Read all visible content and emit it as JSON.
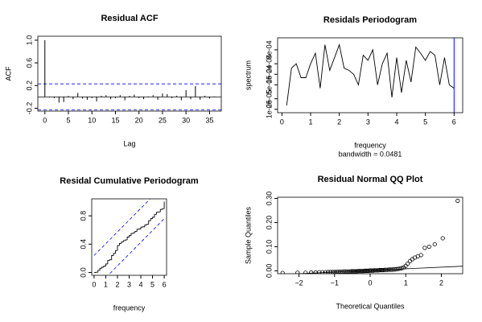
{
  "chart_data": [
    {
      "type": "stem",
      "title": "Residual ACF",
      "x_label": "Lag",
      "y_label": "ACF",
      "color": "#000000",
      "ci_color": "#0000ff",
      "x": [
        0,
        1,
        2,
        3,
        4,
        5,
        6,
        7,
        8,
        9,
        10,
        11,
        12,
        13,
        14,
        15,
        16,
        17,
        18,
        19,
        20,
        21,
        22,
        23,
        24,
        25,
        26,
        27,
        28,
        29,
        30,
        31,
        32,
        33,
        34,
        35,
        36
      ],
      "values": [
        1,
        -0.01,
        -0.02,
        -0.1,
        -0.09,
        0.02,
        -0.04,
        0.07,
        -0.03,
        -0.05,
        -0.02,
        -0.08,
        0.02,
        0.03,
        -0.04,
        -0.02,
        0.03,
        -0.06,
        0.02,
        0.04,
        -0.02,
        -0.04,
        0.01,
        0.03,
        -0.05,
        0.06,
        0.05,
        -0.02,
        0.02,
        -0.06,
        0.12,
        -0.04,
        0.19,
        -0.05,
        0.02,
        -0.03,
        0.01
      ],
      "ci_lines": [
        0.23,
        -0.23
      ],
      "xlim": [
        -1.5,
        37.5
      ],
      "ylim": [
        -0.25,
        1.07
      ],
      "xticks": [
        0,
        5,
        10,
        15,
        20,
        25,
        30,
        35
      ],
      "yticks": [
        {
          "value": -0.2,
          "label": "-0.2"
        },
        0.2,
        0.6,
        {
          "value": 1,
          "label": "1.0"
        }
      ]
    },
    {
      "type": "line",
      "title": "Residals Periodogram",
      "subtitle": "bandwidth = 0.0481",
      "x_label": "frequency",
      "y_label": "spectrum",
      "color": "#000000",
      "ci_color": "#0000ff",
      "log_y": true,
      "x": [
        0.1667,
        0.3333,
        0.5,
        0.6667,
        0.8333,
        1,
        1.1667,
        1.3333,
        1.5,
        1.6667,
        1.8333,
        2,
        2.1667,
        2.3333,
        2.5,
        2.6667,
        2.8333,
        3,
        3.1667,
        3.3333,
        3.5,
        3.6667,
        3.8333,
        4,
        4.1667,
        4.3333,
        4.5,
        4.6667,
        4.8333,
        5,
        5.1667,
        5.3333,
        5.5,
        5.6667,
        5.8333,
        6
      ],
      "values": [
        1.3e-05,
        0.00015,
        0.0002,
        8e-05,
        8e-05,
        0.0002,
        0.0004,
        4e-05,
        0.0007,
        0.00013,
        0.0003,
        0.0007,
        0.00015,
        0.00013,
        0.0001,
        5e-05,
        0.00035,
        0.00025,
        0.0005,
        5e-05,
        0.0002,
        0.0004,
        2.2e-05,
        0.0003,
        3e-05,
        0.00025,
        6e-05,
        0.0006,
        0.0004,
        0.00025,
        0.00045,
        0.00035,
        5e-05,
        0.0003,
        5e-05,
        4e-05
      ],
      "xlim": [
        -0.15,
        6.3
      ],
      "ylim": [
        8e-06,
        0.0011
      ],
      "xticks": [
        0,
        1,
        2,
        3,
        4,
        5,
        6
      ],
      "yticks": [
        {
          "value": 1e-05,
          "label": "1e-05"
        },
        {
          "value": 2e-05,
          "label": "2e-05"
        },
        {
          "value": 5e-05,
          "label": "5e-05"
        },
        {
          "value": 0.0001,
          "label": "1e-04"
        },
        {
          "value": 0.0002,
          "label": "2e-04"
        },
        {
          "value": 0.0005,
          "label": "5e-04"
        }
      ]
    },
    {
      "type": "step",
      "title": "Residal Cumulative Periodogram",
      "x_label": "frequency",
      "color": "#000000",
      "ci_color": "#0000ff",
      "x": [
        0,
        0.1667,
        0.3333,
        0.5,
        0.6667,
        0.8333,
        1,
        1.1667,
        1.3333,
        1.5,
        1.6667,
        1.8333,
        2,
        2.1667,
        2.3333,
        2.5,
        2.6667,
        2.8333,
        3,
        3.1667,
        3.3333,
        3.5,
        3.6667,
        3.8333,
        4,
        4.1667,
        4.3333,
        4.5,
        4.6667,
        4.8333,
        5,
        5.1667,
        5.3333,
        5.5,
        5.6667,
        5.8333,
        6
      ],
      "values": [
        0,
        0.003,
        0.03,
        0.06,
        0.075,
        0.09,
        0.12,
        0.17,
        0.18,
        0.24,
        0.27,
        0.31,
        0.38,
        0.41,
        0.43,
        0.45,
        0.46,
        0.5,
        0.52,
        0.55,
        0.56,
        0.58,
        0.61,
        0.615,
        0.64,
        0.645,
        0.67,
        0.68,
        0.73,
        0.76,
        0.78,
        0.82,
        0.85,
        0.855,
        0.89,
        0.9,
        1
      ],
      "bands": {
        "x": [
          0,
          6
        ],
        "upper": [
          0.24,
          1.24
        ],
        "lower": [
          -0.24,
          0.76
        ]
      },
      "xlim": [
        -0.2,
        6.2
      ],
      "ylim": [
        -0.04,
        1.04
      ],
      "xticks": [
        0,
        1,
        2,
        3,
        4,
        5,
        6
      ],
      "yticks": [
        {
          "value": 0,
          "label": "0.0"
        },
        0.4,
        0.8
      ]
    },
    {
      "type": "scatter",
      "title": "Residual Normal QQ Plot",
      "x_label": "Theoretical Quantiles",
      "y_label": "Sample Quantiles",
      "color": "#000000",
      "x": [
        -2.46,
        -2.04,
        -1.815,
        -1.658,
        -1.534,
        -1.43,
        -1.339,
        -1.258,
        -1.184,
        -1.117,
        -1.055,
        -0.996,
        -0.94,
        -0.887,
        -0.837,
        -0.788,
        -0.742,
        -0.697,
        -0.653,
        -0.61,
        -0.569,
        -0.528,
        -0.489,
        -0.45,
        -0.412,
        -0.374,
        -0.337,
        -0.301,
        -0.264,
        -0.229,
        -0.193,
        -0.157,
        -0.122,
        -0.087,
        -0.052,
        -0.017,
        0.017,
        0.052,
        0.087,
        0.122,
        0.157,
        0.193,
        0.229,
        0.264,
        0.301,
        0.337,
        0.374,
        0.412,
        0.45,
        0.489,
        0.528,
        0.569,
        0.61,
        0.653,
        0.697,
        0.742,
        0.788,
        0.837,
        0.887,
        0.94,
        0.996,
        1.055,
        1.117,
        1.184,
        1.258,
        1.339,
        1.43,
        1.534,
        1.658,
        1.815,
        2.04,
        2.46
      ],
      "values": [
        -0.009,
        -0.008,
        -0.008,
        -0.007,
        -0.007,
        -0.006,
        -0.006,
        -0.006,
        -0.005,
        -0.005,
        -0.005,
        -0.005,
        -0.004,
        -0.004,
        -0.004,
        -0.004,
        -0.003,
        -0.003,
        -0.003,
        -0.003,
        -0.003,
        -0.002,
        -0.002,
        -0.002,
        -0.002,
        -0.002,
        -0.001,
        -0.001,
        -0.001,
        -0.001,
        -0.001,
        0,
        0,
        0,
        0,
        0.001,
        0.001,
        0.001,
        0.001,
        0.002,
        0.002,
        0.002,
        0.002,
        0.003,
        0.003,
        0.003,
        0.003,
        0.004,
        0.004,
        0.004,
        0.005,
        0.005,
        0.005,
        0.006,
        0.006,
        0.007,
        0.008,
        0.009,
        0.011,
        0.014,
        0.02,
        0.03,
        0.04,
        0.048,
        0.055,
        0.06,
        0.065,
        0.095,
        0.1,
        0.11,
        0.135,
        0.29
      ],
      "xlim": [
        -2.6,
        2.6
      ],
      "ylim": [
        -0.012,
        0.305
      ],
      "xticks": [
        {
          "value": -2,
          "label": "−2"
        },
        {
          "value": -1,
          "label": "−1"
        },
        0,
        1,
        2
      ],
      "yticks": [
        {
          "value": 0,
          "label": "0.00"
        },
        {
          "value": 0.1,
          "label": "0.10"
        },
        {
          "value": 0.2,
          "label": "0.20"
        },
        {
          "value": 0.3,
          "label": "0.30"
        }
      ]
    }
  ]
}
